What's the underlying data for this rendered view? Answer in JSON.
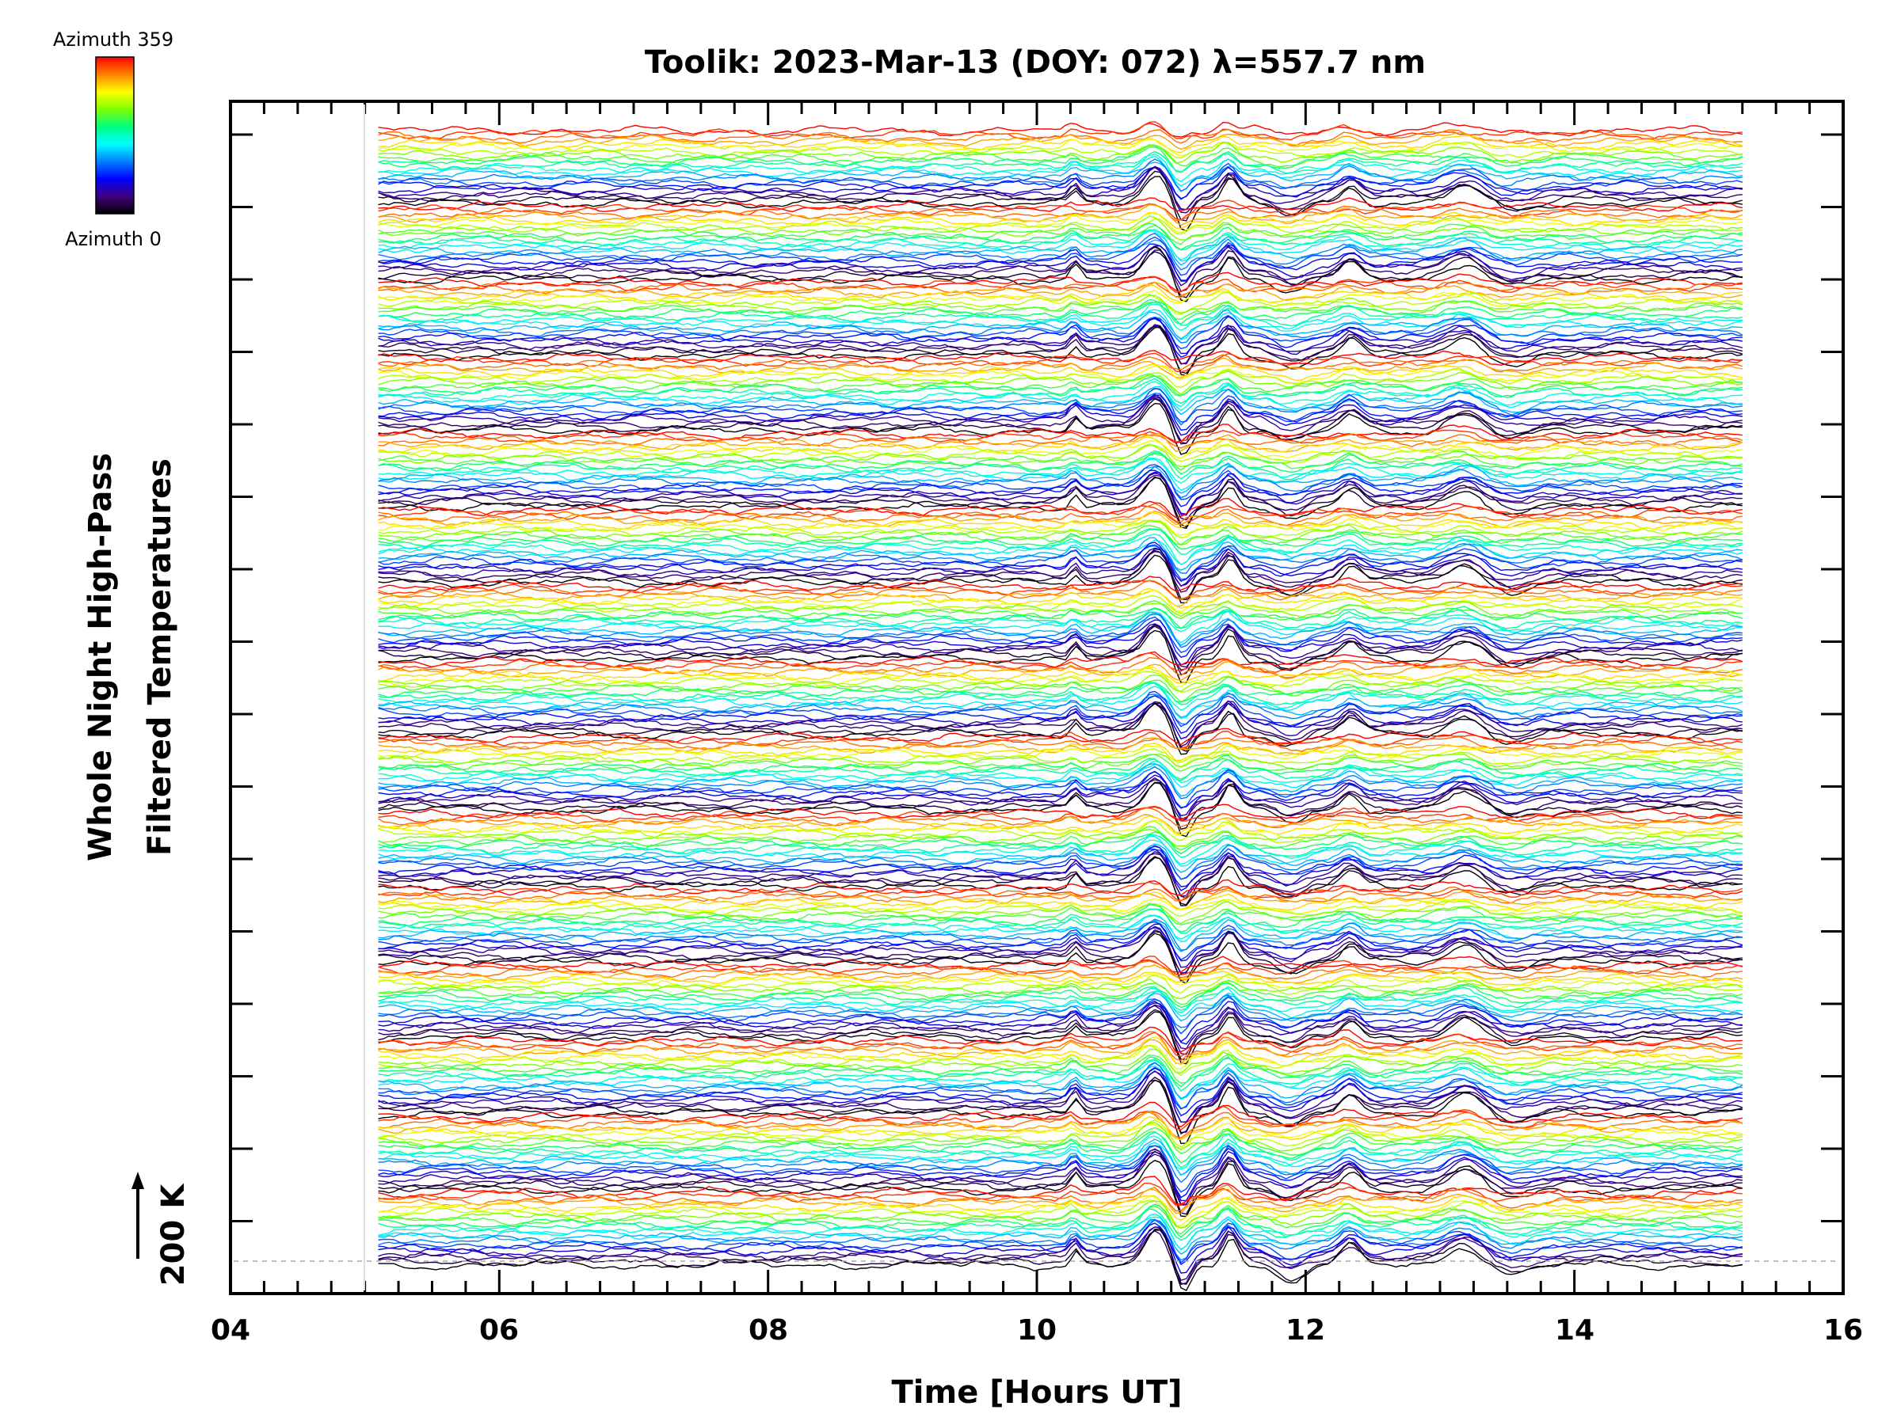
{
  "chart_data": {
    "type": "line",
    "title": "Toolik: 2023-Mar-13 (DOY: 072) λ=557.7 nm",
    "xlabel": "Time [Hours UT]",
    "ylabel_line1": "Whole Night High-Pass",
    "ylabel_line2": "Filtered Temperatures",
    "scale_label": "200 K",
    "xlim": [
      4,
      16
    ],
    "x_ticks": [
      "04",
      "06",
      "08",
      "10",
      "12",
      "14",
      "16"
    ],
    "x_tick_values": [
      4,
      6,
      8,
      10,
      12,
      14,
      16
    ],
    "data_time_range": [
      5.1,
      15.25
    ],
    "colorbar": {
      "top_label": "Azimuth 359",
      "bottom_label": "Azimuth 0",
      "colors": [
        "#ff0000",
        "#ff8000",
        "#ffff00",
        "#80ff00",
        "#00ff80",
        "#00ffff",
        "#0080ff",
        "#0000ff",
        "#400080",
        "#000000"
      ]
    },
    "series_description": "Stacked azimuth traces (0–359°) of high-pass filtered temperatures, offset vertically",
    "stack_groups": 15,
    "traces_per_group": 22,
    "features": [
      {
        "time": 10.25,
        "amplitude": 0.45,
        "width": 0.05
      },
      {
        "time": 10.85,
        "amplitude": 1.0,
        "width": 0.12
      },
      {
        "time": 11.05,
        "amplitude": -0.9,
        "width": 0.08
      },
      {
        "time": 11.4,
        "amplitude": 0.85,
        "width": 0.08
      },
      {
        "time": 11.85,
        "amplitude": -0.45,
        "width": 0.15
      },
      {
        "time": 12.3,
        "amplitude": 0.55,
        "width": 0.1
      },
      {
        "time": 13.15,
        "amplitude": 0.6,
        "width": 0.18
      },
      {
        "time": 13.5,
        "amplitude": -0.3,
        "width": 0.2
      }
    ],
    "grid": false
  }
}
